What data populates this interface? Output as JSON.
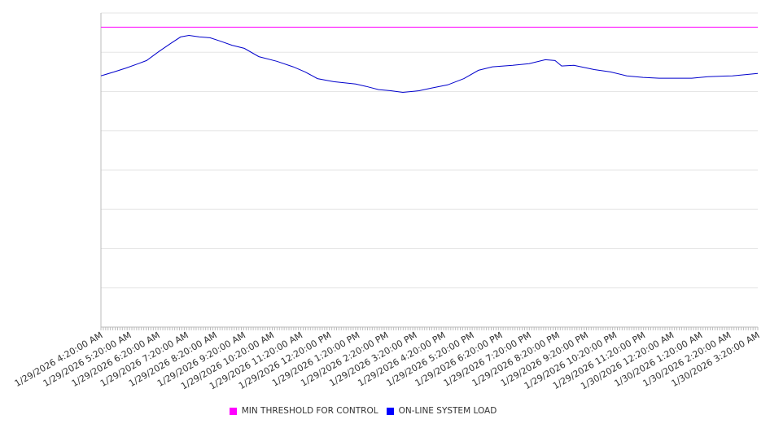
{
  "chart_data": {
    "type": "line",
    "title": "",
    "xlabel": "",
    "ylabel": "",
    "ylim": [
      0,
      8
    ],
    "grid": true,
    "legend_position": "bottom",
    "x_unit": "hours since 1/29/2026 4:20:00 AM",
    "xlim": [
      0,
      23
    ],
    "tick_labels": [
      "1/29/2026 4:20:00 AM",
      "1/29/2026 5:20:00 AM",
      "1/29/2026 6:20:00 AM",
      "1/29/2026 7:20:00 AM",
      "1/29/2026 8:20:00 AM",
      "1/29/2026 9:20:00 AM",
      "1/29/2026 10:20:00 AM",
      "1/29/2026 11:20:00 AM",
      "1/29/2026 12:20:00 PM",
      "1/29/2026 1:20:00 PM",
      "1/29/2026 2:20:00 PM",
      "1/29/2026 3:20:00 PM",
      "1/29/2026 4:20:00 PM",
      "1/29/2026 5:20:00 PM",
      "1/29/2026 6:20:00 PM",
      "1/29/2026 7:20:00 PM",
      "1/29/2026 8:20:00 PM",
      "1/29/2026 9:20:00 PM",
      "1/29/2026 10:20:00 PM",
      "1/29/2026 11:20:00 PM",
      "1/30/2026 12:20:00 AM",
      "1/30/2026 1:20:00 AM",
      "1/30/2026 2:20:00 AM",
      "1/30/2026 3:20:00 AM"
    ],
    "series": [
      {
        "name": "MIN THRESHOLD FOR CONTROL",
        "color": "#ff00ff",
        "x": [
          0,
          23
        ],
        "y": [
          7.64,
          7.64
        ]
      },
      {
        "name": "ON-LINE SYSTEM LOAD",
        "color": "#0000cc",
        "x": [
          0,
          0.46,
          0.88,
          1.31,
          1.6,
          2.03,
          2.45,
          2.79,
          3.08,
          3.45,
          3.82,
          4.16,
          4.59,
          5.02,
          5.53,
          6.16,
          6.73,
          7.15,
          7.58,
          8.15,
          8.92,
          9.29,
          9.72,
          10.15,
          10.57,
          11.14,
          11.57,
          12.14,
          12.71,
          13.22,
          13.71,
          14.42,
          14.99,
          15.56,
          15.9,
          16.13,
          16.56,
          17.27,
          17.84,
          18.41,
          18.98,
          19.55,
          20.12,
          20.69,
          21.26,
          22.11,
          23.0
        ],
        "y": [
          6.4,
          6.5,
          6.6,
          6.71,
          6.79,
          7.02,
          7.23,
          7.39,
          7.43,
          7.39,
          7.37,
          7.29,
          7.18,
          7.1,
          6.89,
          6.77,
          6.63,
          6.5,
          6.33,
          6.25,
          6.19,
          6.13,
          6.05,
          6.02,
          5.98,
          6.02,
          6.09,
          6.17,
          6.33,
          6.54,
          6.63,
          6.67,
          6.71,
          6.81,
          6.79,
          6.65,
          6.67,
          6.56,
          6.5,
          6.4,
          6.36,
          6.34,
          6.34,
          6.34,
          6.38,
          6.4,
          6.46
        ]
      }
    ]
  },
  "legend": {
    "items": [
      {
        "label": "MIN THRESHOLD FOR CONTROL",
        "color": "#ff00ff"
      },
      {
        "label": "ON-LINE SYSTEM LOAD",
        "color": "#0000ff"
      }
    ]
  }
}
